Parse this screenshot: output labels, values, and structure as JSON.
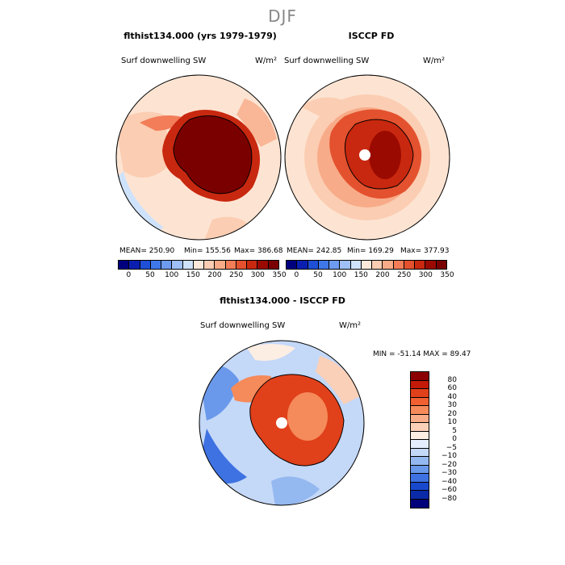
{
  "figure": {
    "season": "DJF",
    "panel_left": {
      "title": "flthist134.000 (yrs 1979-1979)",
      "variable": "Surf downwelling SW",
      "units": "W/m²",
      "mean_text": "MEAN= 250.90",
      "min_text": "Min= 155.56",
      "max_text": "Max= 386.68"
    },
    "panel_right": {
      "title": "ISCCP FD",
      "variable": "Surf downwelling SW",
      "units": "W/m²",
      "mean_text": "MEAN= 242.85",
      "min_text": "Min= 169.29",
      "max_text": "Max= 377.93"
    },
    "panel_diff": {
      "title": "flthist134.000 - ISCCP FD",
      "variable": "Surf downwelling SW",
      "units": "W/m²",
      "minmax_text": "MIN = -51.14 MAX =  89.47"
    }
  },
  "chart_data": [
    {
      "type": "heatmap",
      "title": "flthist134.000 (yrs 1979-1979)",
      "variable": "Surf downwelling SW",
      "units": "W/m²",
      "projection": "south polar stereographic",
      "mean": 250.9,
      "min": 155.56,
      "max": 386.68,
      "colorbar_levels": [
        0,
        50,
        100,
        150,
        200,
        250,
        300,
        350
      ],
      "colorbar_colors": [
        "#00007f",
        "#0a1fb0",
        "#1e4fd6",
        "#3f77e8",
        "#6d9bf0",
        "#9ec0f6",
        "#cfe2fb",
        "#fde9dc",
        "#fbcdb2",
        "#f8ab88",
        "#f27d58",
        "#e4512e",
        "#c8280f",
        "#9a0a00",
        "#7a0000"
      ]
    },
    {
      "type": "heatmap",
      "title": "ISCCP FD",
      "variable": "Surf downwelling SW",
      "units": "W/m²",
      "projection": "south polar stereographic",
      "mean": 242.85,
      "min": 169.29,
      "max": 377.93,
      "colorbar_levels": [
        0,
        50,
        100,
        150,
        200,
        250,
        300,
        350
      ],
      "colorbar_colors": [
        "#00007f",
        "#0a1fb0",
        "#1e4fd6",
        "#3f77e8",
        "#6d9bf0",
        "#9ec0f6",
        "#cfe2fb",
        "#fde9dc",
        "#fbcdb2",
        "#f8ab88",
        "#f27d58",
        "#e4512e",
        "#c8280f",
        "#9a0a00",
        "#7a0000"
      ]
    },
    {
      "type": "heatmap",
      "title": "flthist134.000 - ISCCP FD",
      "variable": "Surf downwelling SW",
      "units": "W/m²",
      "projection": "south polar stereographic",
      "min": -51.14,
      "max": 89.47,
      "colorbar_levels": [
        80,
        60,
        40,
        30,
        20,
        10,
        5,
        0,
        -5,
        -10,
        -20,
        -30,
        -40,
        -60,
        -80
      ],
      "colorbar_colors": [
        "#8b0000",
        "#c41a08",
        "#e0401a",
        "#f06030",
        "#f58a5a",
        "#f8ad88",
        "#fbd0b8",
        "#fdeee3",
        "#e4eefc",
        "#c4d8f8",
        "#94b8f0",
        "#6a98ea",
        "#3e72e2",
        "#1848cc",
        "#0a2aa8",
        "#00007a"
      ]
    }
  ]
}
